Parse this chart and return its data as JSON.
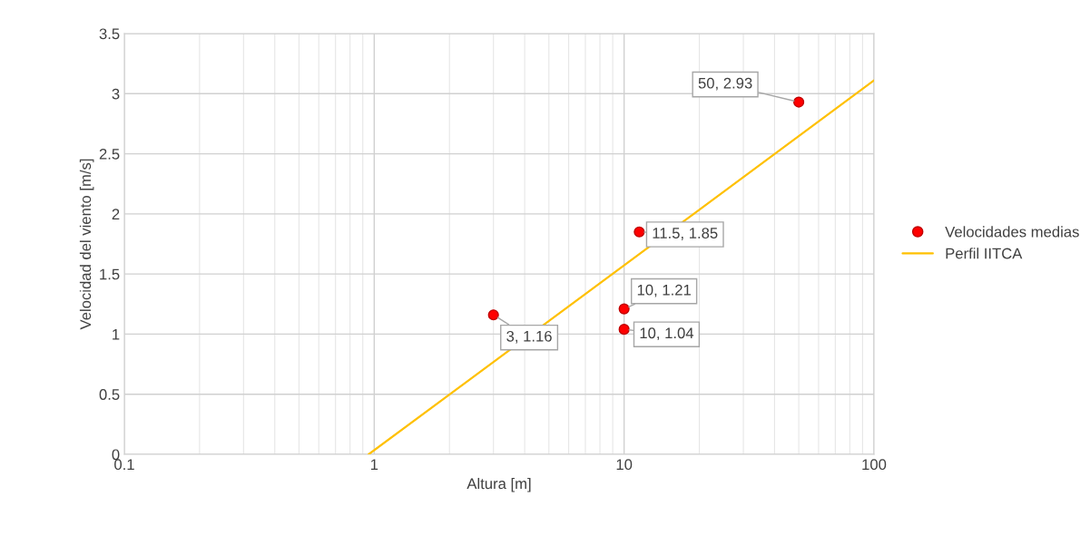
{
  "chart_data": {
    "type": "scatter",
    "xlabel": "Altura [m]",
    "ylabel": "Velocidad del viento [m/s]",
    "log": "x",
    "xlim": [
      0.1,
      100
    ],
    "xticks": [
      0.1,
      1,
      10,
      100
    ],
    "ylim": [
      0,
      3.5
    ],
    "yticks": [
      0,
      0.5,
      1,
      1.5,
      2,
      2.5,
      3,
      3.5
    ],
    "grid": true,
    "legend": "right",
    "series": [
      {
        "name": "Velocidades medias",
        "color": "#ff0000",
        "marker": "circle",
        "x": [
          3,
          10,
          10,
          11.5,
          50
        ],
        "values": [
          1.16,
          1.04,
          1.21,
          1.85,
          2.93
        ],
        "value_labels": [
          "3, 1.16",
          "10, 1.04",
          "10, 1.21",
          "11.5, 1.85",
          "50, 2.93"
        ]
      },
      {
        "name": "Perfil IITCA",
        "type": "line",
        "color": "#ffc000",
        "marker": "none",
        "x": [
          0.95,
          100
        ],
        "values": [
          0,
          3.11
        ]
      }
    ]
  }
}
